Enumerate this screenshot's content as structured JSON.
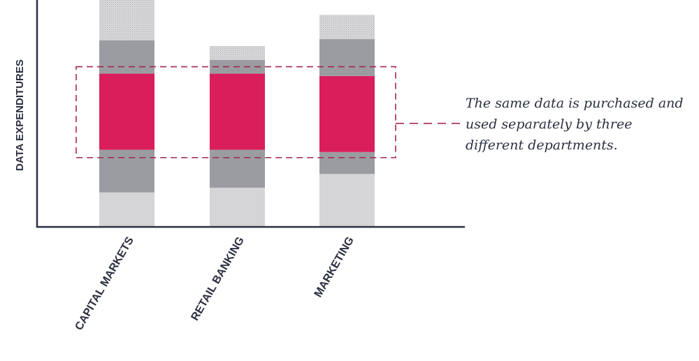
{
  "chart_data": {
    "type": "bar",
    "stacked": true,
    "ylabel": "DATA EXPENDITURES",
    "xlabel": "",
    "categories": [
      "CAPITAL MARKETS",
      "RETAIL BANKING",
      "MARKETING"
    ],
    "ylim": [
      0,
      100
    ],
    "grid": false,
    "y_ticks_shown": false,
    "series": [
      {
        "values": [
          15,
          17,
          23
        ],
        "color": "#d5d5d7",
        "pattern": "none"
      },
      {
        "values": [
          18.5,
          16.5,
          9.5
        ],
        "color": "#9b9ca1",
        "pattern": "none"
      },
      {
        "values": [
          33,
          33,
          33
        ],
        "color": "#d91e5b",
        "pattern": "none"
      },
      {
        "values": [
          14.5,
          6,
          16
        ],
        "color": "#9b9ca1",
        "pattern": "none"
      },
      {
        "values": [
          19,
          6,
          10.5
        ],
        "color": "#d5d5d7",
        "pattern": "dotted"
      }
    ],
    "highlight": {
      "series_index": 2,
      "style": "dashed-box",
      "color": "#a3264f"
    },
    "annotation": {
      "text": "The same data is purchased and used separately by three different departments."
    }
  }
}
